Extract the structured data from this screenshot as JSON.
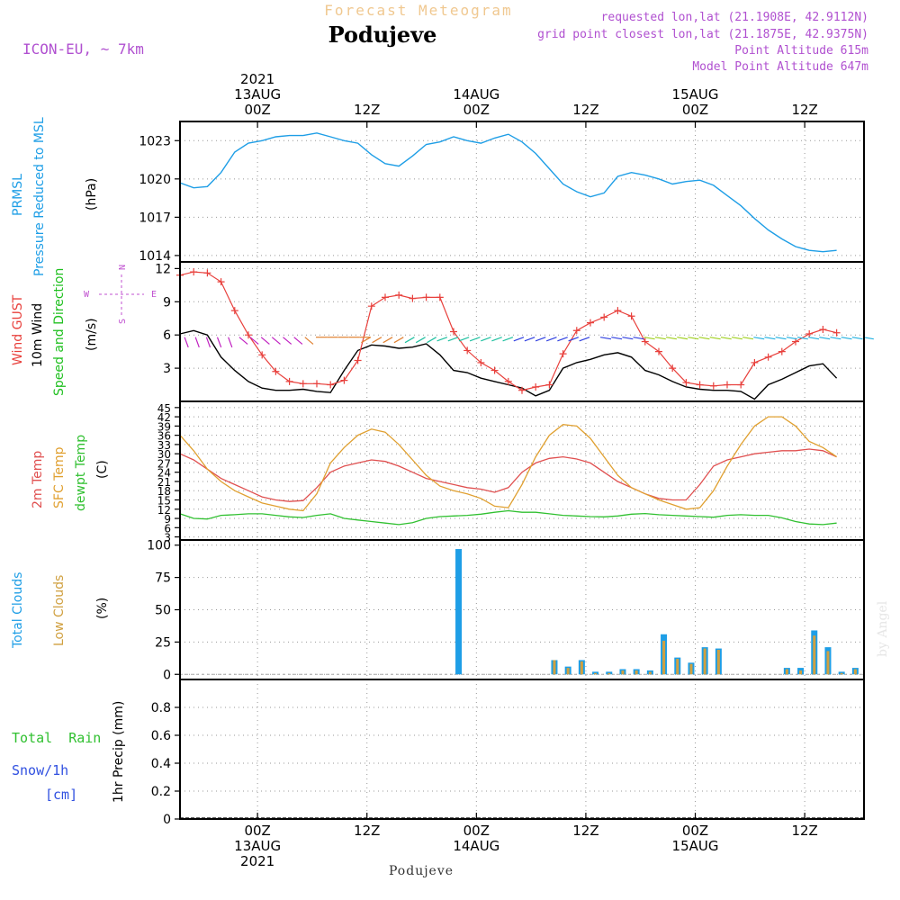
{
  "header": {
    "title": "Forecast Meteogram",
    "location": "Podujeve",
    "model": "ICON-EU, ~ 7km",
    "requested": "requested lon,lat (21.1908E, 42.9112N)",
    "grid_point": "grid point closest lon,lat (21.1875E, 42.9375N)",
    "point_altitude": "Point Altitude 615m",
    "model_altitude": "Model Point Altitude 647m",
    "credit": "by Angel",
    "footer_location": "Podujeve"
  },
  "colors": {
    "pressure": "#1e9ee6",
    "gust": "#e8403c",
    "wind10m": "#000000",
    "direction_label": "#20c020",
    "compass": "#c050d0",
    "temp2m": "#e05050",
    "sfc_temp": "#e0a030",
    "dewpt": "#30c030",
    "total_clouds": "#1e9ee6",
    "low_clouds": "#d0a040",
    "total_rain": "#30c030",
    "snow": "#3050e0",
    "meta_text": "#b050d0",
    "title_text": "#f0c890"
  },
  "chart_data": [
    {
      "type": "line",
      "id": "pressure",
      "ylabel_main": "PRMSL",
      "ylabel_sub": "Pressure Reduced to MSL",
      "unit": "(hPa)",
      "ylim": [
        1013.5,
        1024.5
      ],
      "yticks": [
        1014,
        1017,
        1020,
        1023
      ],
      "x_hours": [
        0,
        3,
        6,
        9,
        12,
        15,
        18,
        21,
        24,
        27,
        30,
        33,
        36,
        39,
        42,
        45,
        48,
        51,
        54,
        57,
        60,
        63,
        66,
        69,
        72,
        75,
        78,
        81,
        84,
        87,
        90,
        93,
        96,
        99,
        102,
        105,
        108,
        111,
        114,
        117,
        120,
        123,
        126,
        129,
        132,
        135,
        138,
        141,
        144
      ],
      "values": [
        1019.7,
        1019.3,
        1019.4,
        1020.5,
        1022.1,
        1022.8,
        1023.0,
        1023.3,
        1023.4,
        1023.4,
        1023.6,
        1023.3,
        1023.0,
        1022.8,
        1021.9,
        1021.2,
        1021.0,
        1021.8,
        1022.7,
        1022.9,
        1023.3,
        1023.0,
        1022.8,
        1023.2,
        1023.5,
        1022.9,
        1022.0,
        1020.8,
        1019.6,
        1019.0,
        1018.6,
        1018.9,
        1020.2,
        1020.5,
        1020.3,
        1020.0,
        1019.6,
        1019.8,
        1019.9,
        1019.5,
        1018.7,
        1017.9,
        1016.9,
        1016.0,
        1015.3,
        1014.7,
        1014.4,
        1014.3,
        1014.4
      ]
    },
    {
      "type": "line",
      "id": "wind",
      "ylabel_gust": "Wind GUST",
      "ylabel_10m": "10m Wind",
      "ylabel_dir": "Speed and Direction",
      "unit": "(m/s)",
      "compass": {
        "n": "N",
        "w": "W",
        "e": "E",
        "s": "S"
      },
      "ylim": [
        0,
        12.6
      ],
      "yticks": [
        3,
        6,
        9,
        12
      ],
      "series": [
        {
          "name": "Wind GUST",
          "values": [
            11.4,
            11.7,
            11.6,
            10.8,
            8.2,
            6.0,
            4.2,
            2.7,
            1.8,
            1.6,
            1.6,
            1.5,
            1.9,
            3.7,
            8.6,
            9.4,
            9.6,
            9.3,
            9.4,
            9.4,
            6.3,
            4.6,
            3.5,
            2.8,
            1.8,
            1.0,
            1.3,
            1.5,
            4.3,
            6.4,
            7.1,
            7.6,
            8.2,
            7.7,
            5.4,
            4.5,
            3.0,
            1.7,
            1.5,
            1.4,
            1.5,
            1.5,
            3.5,
            4.0,
            4.5,
            5.4,
            6.1,
            6.5,
            6.2
          ]
        },
        {
          "name": "10m Wind",
          "values": [
            6.1,
            6.4,
            6.0,
            4.0,
            2.8,
            1.8,
            1.2,
            1.0,
            1.0,
            1.1,
            0.9,
            0.8,
            2.8,
            4.6,
            5.1,
            5.0,
            4.8,
            4.9,
            5.2,
            4.2,
            2.8,
            2.6,
            2.1,
            1.8,
            1.5,
            1.2,
            0.5,
            1.0,
            3.0,
            3.5,
            3.8,
            4.2,
            4.4,
            4.0,
            2.8,
            2.4,
            1.8,
            1.3,
            1.1,
            1.0,
            1.0,
            0.9,
            0.2,
            1.5,
            2.0,
            2.6,
            3.2,
            3.4,
            2.1
          ]
        }
      ]
    },
    {
      "type": "line",
      "id": "temperature",
      "ylabel_2m": "2m Temp",
      "ylabel_sfc": "SFC Temp",
      "ylabel_dew": "dewpt Temp",
      "unit": "(C)",
      "ylim": [
        2,
        47
      ],
      "yticks": [
        3,
        6,
        9,
        12,
        15,
        18,
        21,
        24,
        27,
        30,
        33,
        36,
        39,
        42,
        45
      ],
      "series": [
        {
          "name": "2m Temp",
          "values": [
            30,
            28,
            25,
            22,
            20,
            18,
            16,
            15,
            14.5,
            14.8,
            19,
            24,
            26,
            27,
            28,
            27.5,
            26,
            24,
            22,
            21,
            20,
            19,
            18.5,
            17.5,
            19,
            24,
            27,
            28.5,
            29,
            28.3,
            27,
            24,
            21,
            19,
            17,
            15.5,
            15,
            15,
            20,
            26,
            28,
            29,
            30,
            30.5,
            31,
            31,
            31.5,
            31,
            29
          ]
        },
        {
          "name": "SFC Temp",
          "values": [
            36,
            31,
            25,
            21,
            18,
            16,
            14,
            13,
            12,
            11.5,
            17,
            27,
            32,
            36,
            38,
            37,
            33,
            28,
            23,
            19.5,
            18,
            17,
            15.5,
            13,
            12.5,
            20,
            29,
            36,
            39.5,
            39,
            35,
            29,
            23,
            19,
            17,
            15,
            13.5,
            12,
            12.5,
            18,
            26,
            33,
            39,
            42,
            42,
            39,
            34,
            32,
            29
          ]
        },
        {
          "name": "dewpt Temp",
          "values": [
            10.5,
            9,
            8.8,
            10,
            10.2,
            10.5,
            10.5,
            10,
            9.5,
            9.3,
            10,
            10.5,
            9,
            8.5,
            8,
            7.5,
            7,
            7.6,
            9,
            9.6,
            9.8,
            10,
            10.4,
            11,
            11.5,
            11,
            11,
            10.5,
            10,
            9.8,
            9.6,
            9.5,
            9.8,
            10.4,
            10.6,
            10.2,
            10,
            9.8,
            9.6,
            9.4,
            10,
            10.2,
            10,
            10,
            9.2,
            8,
            7.2,
            7,
            7.5
          ]
        }
      ]
    },
    {
      "type": "bar",
      "id": "clouds",
      "ylabel_total": "Total Clouds",
      "ylabel_low": "Low Clouds",
      "unit": "(%)",
      "ylim": [
        -4,
        104
      ],
      "yticks": [
        0,
        25,
        50,
        75,
        100
      ],
      "series": [
        {
          "name": "Total Clouds",
          "x_hours": [
            61,
            82,
            85,
            88,
            91,
            94,
            97,
            100,
            103,
            106,
            109,
            112,
            115,
            118,
            133,
            136,
            139,
            142,
            145,
            148
          ],
          "values": [
            97,
            11,
            6,
            11,
            2,
            2,
            4,
            4,
            3,
            31,
            13,
            9,
            21,
            20,
            5,
            5,
            34,
            21,
            2,
            5
          ]
        },
        {
          "name": "Low Clouds",
          "x_hours": [
            82,
            85,
            88,
            91,
            94,
            97,
            100,
            103,
            106,
            109,
            112,
            115,
            118,
            133,
            136,
            139,
            142,
            145,
            148
          ],
          "values": [
            11,
            5,
            10,
            1,
            1,
            3,
            3,
            2,
            26,
            12,
            8,
            20,
            19,
            4,
            3,
            30,
            18,
            1,
            4
          ]
        }
      ]
    },
    {
      "type": "line",
      "id": "precip",
      "ylabel": "1hr Precip (mm)",
      "legend_rain": "Total  Rain",
      "legend_snow": "Snow/1h",
      "legend_snow_unit": "[cm]",
      "ylim": [
        0,
        1.0
      ],
      "yticks": [
        "0",
        "0.2",
        "0.4",
        "0.6",
        "0.8"
      ],
      "values": [
        0,
        0
      ]
    }
  ],
  "time_axis": {
    "hours_range": [
      0,
      150
    ],
    "top_labels": [
      {
        "hour": 17,
        "lines": [
          "2021",
          "13AUG",
          "00Z"
        ]
      },
      {
        "hour": 41,
        "lines": [
          "12Z"
        ]
      },
      {
        "hour": 65,
        "lines": [
          "14AUG",
          "00Z"
        ]
      },
      {
        "hour": 89,
        "lines": [
          "12Z"
        ]
      },
      {
        "hour": 113,
        "lines": [
          "15AUG",
          "00Z"
        ]
      },
      {
        "hour": 137,
        "lines": [
          "12Z"
        ]
      }
    ],
    "bottom_labels": [
      {
        "hour": 17,
        "lines": [
          "00Z",
          "13AUG",
          "2021"
        ]
      },
      {
        "hour": 41,
        "lines": [
          "12Z"
        ]
      },
      {
        "hour": 65,
        "lines": [
          "00Z",
          "14AUG"
        ]
      },
      {
        "hour": 89,
        "lines": [
          "12Z"
        ]
      },
      {
        "hour": 113,
        "lines": [
          "00Z",
          "15AUG"
        ]
      },
      {
        "hour": 137,
        "lines": [
          "12Z"
        ]
      }
    ]
  }
}
